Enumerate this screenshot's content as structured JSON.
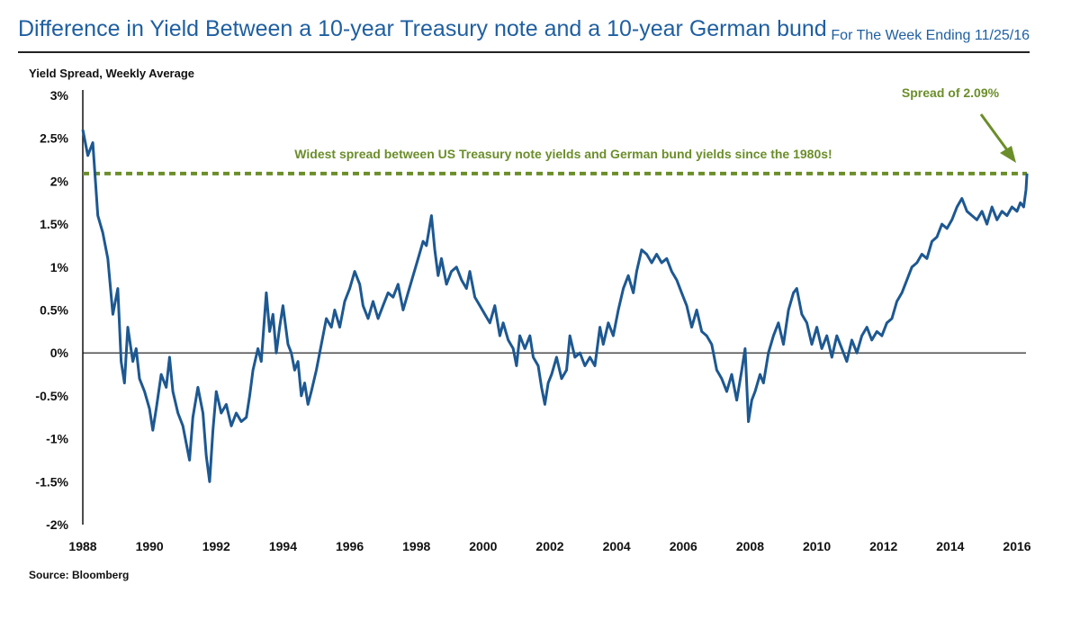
{
  "header": {
    "title": "Difference in Yield Between a 10-year Treasury note and a 10-year German bund",
    "date_note": "For The Week Ending 11/25/16"
  },
  "footer": {
    "source": "Source: Bloomberg"
  },
  "colors": {
    "line": "#1d5891",
    "annotation": "#6b8e2a",
    "title": "#1f5fa0",
    "axis": "#111111"
  },
  "chart_data": {
    "type": "line",
    "title": "",
    "ylabel": "Yield Spread, Weekly Average",
    "xlabel": "",
    "ylim": [
      -2,
      3
    ],
    "xlim": [
      1988,
      2016
    ],
    "y_ticks": [
      {
        "value": 3,
        "label": "3%"
      },
      {
        "value": 2.5,
        "label": "2.5%"
      },
      {
        "value": 2,
        "label": "2%"
      },
      {
        "value": 1.5,
        "label": "1.5%"
      },
      {
        "value": 1,
        "label": "1%"
      },
      {
        "value": 0.5,
        "label": "0.5%"
      },
      {
        "value": 0,
        "label": "0%"
      },
      {
        "value": -0.5,
        "label": "-0.5%"
      },
      {
        "value": -1,
        "label": "-1%"
      },
      {
        "value": -1.5,
        "label": "-1.5%"
      },
      {
        "value": -2,
        "label": "-2%"
      }
    ],
    "x_ticks": [
      {
        "value": 1988,
        "label": "1988"
      },
      {
        "value": 1990,
        "label": "1990"
      },
      {
        "value": 1992,
        "label": "1992"
      },
      {
        "value": 1994,
        "label": "1994"
      },
      {
        "value": 1996,
        "label": "1996"
      },
      {
        "value": 1998,
        "label": "1998"
      },
      {
        "value": 2000,
        "label": "2000"
      },
      {
        "value": 2002,
        "label": "2002"
      },
      {
        "value": 2004,
        "label": "2004"
      },
      {
        "value": 2006,
        "label": "2006"
      },
      {
        "value": 2008,
        "label": "2008"
      },
      {
        "value": 2010,
        "label": "2010"
      },
      {
        "value": 2012,
        "label": "2012"
      },
      {
        "value": 2014,
        "label": "2014"
      },
      {
        "value": 2016,
        "label": "2016"
      }
    ],
    "zero_line": 0,
    "reference_line": {
      "value": 2.09
    },
    "annotations": {
      "widest_text": "Widest spread between US Treasury note yields and German bund yields since the 1980s!",
      "spread_label": "Spread of 2.09%"
    },
    "series": [
      {
        "name": "",
        "points": [
          [
            1988.0,
            2.6
          ],
          [
            1988.15,
            2.3
          ],
          [
            1988.3,
            2.45
          ],
          [
            1988.45,
            1.6
          ],
          [
            1988.6,
            1.4
          ],
          [
            1988.75,
            1.1
          ],
          [
            1988.9,
            0.45
          ],
          [
            1989.05,
            0.75
          ],
          [
            1989.15,
            -0.1
          ],
          [
            1989.25,
            -0.35
          ],
          [
            1989.35,
            0.3
          ],
          [
            1989.5,
            -0.1
          ],
          [
            1989.6,
            0.05
          ],
          [
            1989.7,
            -0.3
          ],
          [
            1989.85,
            -0.45
          ],
          [
            1990.0,
            -0.65
          ],
          [
            1990.1,
            -0.9
          ],
          [
            1990.2,
            -0.65
          ],
          [
            1990.35,
            -0.25
          ],
          [
            1990.5,
            -0.4
          ],
          [
            1990.6,
            -0.05
          ],
          [
            1990.7,
            -0.45
          ],
          [
            1990.85,
            -0.7
          ],
          [
            1991.0,
            -0.85
          ],
          [
            1991.1,
            -1.05
          ],
          [
            1991.2,
            -1.25
          ],
          [
            1991.3,
            -0.75
          ],
          [
            1991.45,
            -0.4
          ],
          [
            1991.6,
            -0.7
          ],
          [
            1991.7,
            -1.2
          ],
          [
            1991.8,
            -1.5
          ],
          [
            1991.9,
            -0.9
          ],
          [
            1992.0,
            -0.45
          ],
          [
            1992.15,
            -0.7
          ],
          [
            1992.3,
            -0.6
          ],
          [
            1992.45,
            -0.85
          ],
          [
            1992.6,
            -0.7
          ],
          [
            1992.75,
            -0.8
          ],
          [
            1992.9,
            -0.75
          ],
          [
            1993.0,
            -0.5
          ],
          [
            1993.1,
            -0.2
          ],
          [
            1993.25,
            0.05
          ],
          [
            1993.35,
            -0.1
          ],
          [
            1993.5,
            0.7
          ],
          [
            1993.6,
            0.25
          ],
          [
            1993.7,
            0.45
          ],
          [
            1993.8,
            0.0
          ],
          [
            1993.9,
            0.3
          ],
          [
            1994.0,
            0.55
          ],
          [
            1994.15,
            0.1
          ],
          [
            1994.25,
            0.0
          ],
          [
            1994.35,
            -0.2
          ],
          [
            1994.45,
            -0.1
          ],
          [
            1994.55,
            -0.5
          ],
          [
            1994.65,
            -0.35
          ],
          [
            1994.75,
            -0.6
          ],
          [
            1994.85,
            -0.45
          ],
          [
            1995.0,
            -0.2
          ],
          [
            1995.1,
            0.0
          ],
          [
            1995.2,
            0.2
          ],
          [
            1995.3,
            0.4
          ],
          [
            1995.45,
            0.3
          ],
          [
            1995.55,
            0.5
          ],
          [
            1995.7,
            0.3
          ],
          [
            1995.85,
            0.6
          ],
          [
            1996.0,
            0.75
          ],
          [
            1996.15,
            0.95
          ],
          [
            1996.3,
            0.8
          ],
          [
            1996.4,
            0.55
          ],
          [
            1996.55,
            0.4
          ],
          [
            1996.7,
            0.6
          ],
          [
            1996.85,
            0.4
          ],
          [
            1997.0,
            0.55
          ],
          [
            1997.15,
            0.7
          ],
          [
            1997.3,
            0.65
          ],
          [
            1997.45,
            0.8
          ],
          [
            1997.6,
            0.5
          ],
          [
            1997.75,
            0.7
          ],
          [
            1997.9,
            0.9
          ],
          [
            1998.05,
            1.1
          ],
          [
            1998.2,
            1.3
          ],
          [
            1998.3,
            1.25
          ],
          [
            1998.45,
            1.6
          ],
          [
            1998.55,
            1.2
          ],
          [
            1998.65,
            0.9
          ],
          [
            1998.75,
            1.1
          ],
          [
            1998.9,
            0.8
          ],
          [
            1999.05,
            0.95
          ],
          [
            1999.2,
            1.0
          ],
          [
            1999.35,
            0.85
          ],
          [
            1999.5,
            0.75
          ],
          [
            1999.6,
            0.95
          ],
          [
            1999.75,
            0.65
          ],
          [
            1999.9,
            0.55
          ],
          [
            2000.05,
            0.45
          ],
          [
            2000.2,
            0.35
          ],
          [
            2000.35,
            0.55
          ],
          [
            2000.5,
            0.2
          ],
          [
            2000.6,
            0.35
          ],
          [
            2000.75,
            0.15
          ],
          [
            2000.9,
            0.05
          ],
          [
            2001.0,
            -0.15
          ],
          [
            2001.1,
            0.2
          ],
          [
            2001.25,
            0.05
          ],
          [
            2001.4,
            0.2
          ],
          [
            2001.5,
            -0.05
          ],
          [
            2001.65,
            -0.15
          ],
          [
            2001.75,
            -0.4
          ],
          [
            2001.85,
            -0.6
          ],
          [
            2001.95,
            -0.35
          ],
          [
            2002.05,
            -0.25
          ],
          [
            2002.2,
            -0.05
          ],
          [
            2002.35,
            -0.3
          ],
          [
            2002.5,
            -0.2
          ],
          [
            2002.6,
            0.2
          ],
          [
            2002.75,
            -0.05
          ],
          [
            2002.9,
            0.0
          ],
          [
            2003.05,
            -0.15
          ],
          [
            2003.2,
            -0.05
          ],
          [
            2003.35,
            -0.15
          ],
          [
            2003.5,
            0.3
          ],
          [
            2003.6,
            0.1
          ],
          [
            2003.75,
            0.35
          ],
          [
            2003.9,
            0.2
          ],
          [
            2004.05,
            0.5
          ],
          [
            2004.2,
            0.75
          ],
          [
            2004.35,
            0.9
          ],
          [
            2004.5,
            0.7
          ],
          [
            2004.6,
            0.95
          ],
          [
            2004.75,
            1.2
          ],
          [
            2004.9,
            1.15
          ],
          [
            2005.05,
            1.05
          ],
          [
            2005.2,
            1.15
          ],
          [
            2005.35,
            1.05
          ],
          [
            2005.5,
            1.1
          ],
          [
            2005.65,
            0.95
          ],
          [
            2005.8,
            0.85
          ],
          [
            2005.95,
            0.7
          ],
          [
            2006.1,
            0.55
          ],
          [
            2006.25,
            0.3
          ],
          [
            2006.4,
            0.5
          ],
          [
            2006.55,
            0.25
          ],
          [
            2006.7,
            0.2
          ],
          [
            2006.85,
            0.1
          ],
          [
            2007.0,
            -0.2
          ],
          [
            2007.15,
            -0.3
          ],
          [
            2007.3,
            -0.45
          ],
          [
            2007.45,
            -0.25
          ],
          [
            2007.6,
            -0.55
          ],
          [
            2007.75,
            -0.2
          ],
          [
            2007.85,
            0.05
          ],
          [
            2007.95,
            -0.8
          ],
          [
            2008.05,
            -0.55
          ],
          [
            2008.15,
            -0.45
          ],
          [
            2008.3,
            -0.25
          ],
          [
            2008.4,
            -0.35
          ],
          [
            2008.55,
            0.0
          ],
          [
            2008.7,
            0.2
          ],
          [
            2008.85,
            0.35
          ],
          [
            2009.0,
            0.1
          ],
          [
            2009.15,
            0.5
          ],
          [
            2009.3,
            0.7
          ],
          [
            2009.4,
            0.75
          ],
          [
            2009.55,
            0.45
          ],
          [
            2009.7,
            0.35
          ],
          [
            2009.85,
            0.1
          ],
          [
            2010.0,
            0.3
          ],
          [
            2010.15,
            0.05
          ],
          [
            2010.3,
            0.2
          ],
          [
            2010.45,
            -0.05
          ],
          [
            2010.6,
            0.2
          ],
          [
            2010.75,
            0.05
          ],
          [
            2010.9,
            -0.1
          ],
          [
            2011.05,
            0.15
          ],
          [
            2011.2,
            0.0
          ],
          [
            2011.35,
            0.2
          ],
          [
            2011.5,
            0.3
          ],
          [
            2011.65,
            0.15
          ],
          [
            2011.8,
            0.25
          ],
          [
            2011.95,
            0.2
          ],
          [
            2012.1,
            0.35
          ],
          [
            2012.25,
            0.4
          ],
          [
            2012.4,
            0.6
          ],
          [
            2012.55,
            0.7
          ],
          [
            2012.7,
            0.85
          ],
          [
            2012.85,
            1.0
          ],
          [
            2013.0,
            1.05
          ],
          [
            2013.15,
            1.15
          ],
          [
            2013.3,
            1.1
          ],
          [
            2013.45,
            1.3
          ],
          [
            2013.6,
            1.35
          ],
          [
            2013.75,
            1.5
          ],
          [
            2013.9,
            1.45
          ],
          [
            2014.05,
            1.55
          ],
          [
            2014.2,
            1.7
          ],
          [
            2014.35,
            1.8
          ],
          [
            2014.5,
            1.65
          ],
          [
            2014.65,
            1.6
          ],
          [
            2014.8,
            1.55
          ],
          [
            2014.95,
            1.65
          ],
          [
            2015.1,
            1.5
          ],
          [
            2015.25,
            1.7
          ],
          [
            2015.4,
            1.55
          ],
          [
            2015.55,
            1.65
          ],
          [
            2015.7,
            1.6
          ],
          [
            2015.85,
            1.7
          ],
          [
            2016.0,
            1.65
          ],
          [
            2016.1,
            1.75
          ],
          [
            2016.2,
            1.7
          ],
          [
            2016.27,
            1.9
          ],
          [
            2016.3,
            2.09
          ]
        ]
      }
    ]
  }
}
